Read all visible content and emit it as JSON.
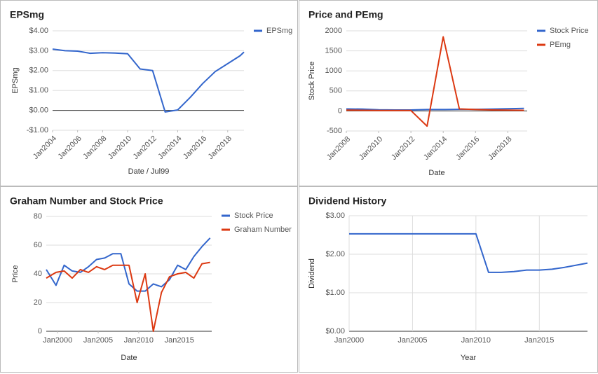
{
  "chart_data": [
    {
      "type": "line",
      "title": "EPSmg",
      "xlabel": "Date / Jul99",
      "ylabel": "EPSmg",
      "x": [
        2004,
        2005,
        2006,
        2007,
        2008,
        2009,
        2010,
        2011,
        2012,
        2013,
        2014,
        2015,
        2016,
        2017,
        2018,
        2019,
        2019.3
      ],
      "series": [
        {
          "name": "EPSmg",
          "color": "#3366cc",
          "values": [
            3.08,
            3.0,
            2.98,
            2.87,
            2.9,
            2.88,
            2.85,
            2.08,
            2.0,
            -0.08,
            0.02,
            0.65,
            1.35,
            1.95,
            2.35,
            2.75,
            2.93
          ]
        }
      ],
      "xlim": [
        2004,
        2019.3
      ],
      "xticks": [
        {
          "value": 2004,
          "label": "Jan2004"
        },
        {
          "value": 2006,
          "label": "Jan2006"
        },
        {
          "value": 2008,
          "label": "Jan2008"
        },
        {
          "value": 2010,
          "label": "Jan2010"
        },
        {
          "value": 2012,
          "label": "Jan2012"
        },
        {
          "value": 2014,
          "label": "Jan2014"
        },
        {
          "value": 2016,
          "label": "Jan2016"
        },
        {
          "value": 2018,
          "label": "Jan2018"
        }
      ],
      "ylim": [
        -1,
        4
      ],
      "yticks": [
        {
          "value": 4,
          "label": "$4.00"
        },
        {
          "value": 3,
          "label": "$3.00"
        },
        {
          "value": 2,
          "label": "$2.00"
        },
        {
          "value": 1,
          "label": "$1.00"
        },
        {
          "value": 0,
          "label": "$0.00"
        },
        {
          "value": -1,
          "label": "-$1.00"
        }
      ],
      "grid": true,
      "legend": "right"
    },
    {
      "type": "line",
      "title": "Price and PEmg",
      "xlabel": "Date",
      "ylabel": "Stock Price",
      "x": [
        2008,
        2009,
        2010,
        2011,
        2012,
        2013,
        2014,
        2015,
        2016,
        2017,
        2018,
        2019
      ],
      "series": [
        {
          "name": "Stock Price",
          "color": "#3366cc",
          "values": [
            50,
            45,
            30,
            25,
            25,
            35,
            35,
            40,
            40,
            45,
            55,
            65
          ]
        },
        {
          "name": "PEmg",
          "color": "#dc3912",
          "values": [
            20,
            15,
            10,
            10,
            10,
            -380,
            1850,
            50,
            35,
            25,
            20,
            15
          ]
        }
      ],
      "xlim": [
        2008,
        2019.2
      ],
      "xticks": [
        {
          "value": 2008,
          "label": "Jan2008"
        },
        {
          "value": 2010,
          "label": "Jan2010"
        },
        {
          "value": 2012,
          "label": "Jan2012"
        },
        {
          "value": 2014,
          "label": "Jan2014"
        },
        {
          "value": 2016,
          "label": "Jan2016"
        },
        {
          "value": 2018,
          "label": "Jan2018"
        }
      ],
      "ylim": [
        -500,
        2000
      ],
      "yticks": [
        2000,
        1500,
        1000,
        500,
        0,
        -500
      ],
      "grid": true,
      "legend": "right"
    },
    {
      "type": "line",
      "title": "Graham Number and Stock Price",
      "xlabel": "Date",
      "ylabel": "Price",
      "x": [
        1998.6,
        1999.8,
        2000.8,
        2001.8,
        2002.8,
        2003.8,
        2004.8,
        2005.8,
        2006.8,
        2007.8,
        2008.8,
        2009.8,
        2010.8,
        2011.8,
        2012.8,
        2013.8,
        2014.8,
        2015.8,
        2016.8,
        2017.8,
        2018.8
      ],
      "series": [
        {
          "name": "Stock Price",
          "color": "#3366cc",
          "values": [
            43,
            32,
            46,
            42,
            41,
            45,
            50,
            51,
            54,
            54,
            33,
            28,
            28,
            33,
            31,
            36,
            46,
            43,
            52,
            59,
            65
          ]
        },
        {
          "name": "Graham Number",
          "color": "#dc3912",
          "values": [
            37,
            41,
            42,
            37,
            43,
            41,
            45,
            43,
            46,
            46,
            46,
            20,
            40,
            0,
            27,
            38,
            40,
            41,
            37,
            47,
            48
          ]
        }
      ],
      "xlim": [
        1998.6,
        2019
      ],
      "xticks": [
        {
          "value": 2000,
          "label": "Jan2000"
        },
        {
          "value": 2005,
          "label": "Jan2005"
        },
        {
          "value": 2010,
          "label": "Jan2010"
        },
        {
          "value": 2015,
          "label": "Jan2015"
        }
      ],
      "ylim": [
        0,
        80
      ],
      "yticks": [
        0,
        20,
        40,
        60,
        80
      ],
      "grid": true,
      "legend": "right"
    },
    {
      "type": "line",
      "title": "Dividend History",
      "xlabel": "Year",
      "ylabel": "Dividend",
      "x": [
        2000,
        2010,
        2011,
        2012,
        2013,
        2014,
        2015,
        2016,
        2017,
        2018.8
      ],
      "series": [
        {
          "color": "#3366cc",
          "values": [
            2.53,
            2.53,
            1.53,
            1.53,
            1.55,
            1.59,
            1.59,
            1.61,
            1.66,
            1.77
          ]
        }
      ],
      "xlim": [
        2000,
        2018.8
      ],
      "xticks": [
        {
          "value": 2000,
          "label": "Jan2000"
        },
        {
          "value": 2005,
          "label": "Jan2005"
        },
        {
          "value": 2010,
          "label": "Jan2010"
        },
        {
          "value": 2015,
          "label": "Jan2015"
        }
      ],
      "ylim": [
        0,
        3
      ],
      "yticks": [
        {
          "value": 0,
          "label": "$0.00"
        },
        {
          "value": 1,
          "label": "$1.00"
        },
        {
          "value": 2,
          "label": "$2.00"
        },
        {
          "value": 3,
          "label": "$3.00"
        }
      ],
      "grid": true,
      "xgrid": true
    }
  ]
}
